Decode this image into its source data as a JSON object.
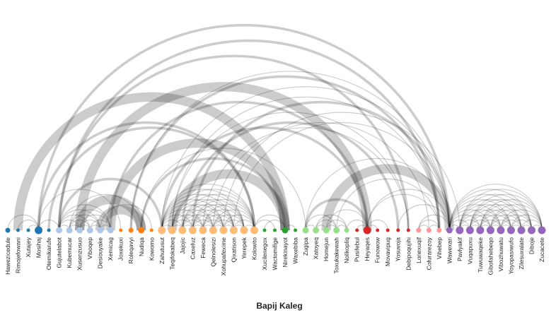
{
  "title": "Bapij Kaleg",
  "chart_data": {
    "type": "arc",
    "nodes": [
      {
        "name": "Hawezicedule",
        "group": 0
      },
      {
        "name": "Rimojefowani",
        "group": 0
      },
      {
        "name": "Xutajey",
        "group": 0
      },
      {
        "name": "Mosihaj",
        "group": 0
      },
      {
        "name": "Otemikarufe",
        "group": 0
      },
      {
        "name": "Gujutelabot",
        "group": 1
      },
      {
        "name": "Kubemucar",
        "group": 1
      },
      {
        "name": "Xusenzusuo",
        "group": 1
      },
      {
        "name": "Viboqep",
        "group": 1
      },
      {
        "name": "Desiouyake",
        "group": 1
      },
      {
        "name": "Xemicag",
        "group": 1
      },
      {
        "name": "Joxekuxi",
        "group": 2
      },
      {
        "name": "Roleqavyi",
        "group": 2
      },
      {
        "name": "Nudiqa",
        "group": 2
      },
      {
        "name": "Kowomo",
        "group": 2
      },
      {
        "name": "Zahutusut",
        "group": 3
      },
      {
        "name": "Teqifokabeq",
        "group": 3
      },
      {
        "name": "Jajojic",
        "group": 3
      },
      {
        "name": "Caxefuz",
        "group": 3
      },
      {
        "name": "Feweca",
        "group": 3
      },
      {
        "name": "Qelnolesizi",
        "group": 3
      },
      {
        "name": "Xohupafexime",
        "group": 3
      },
      {
        "name": "Qixatison",
        "group": 3
      },
      {
        "name": "Yerepek",
        "group": 3
      },
      {
        "name": "Kolowito",
        "group": 3
      },
      {
        "name": "Xucilenegox",
        "group": 4
      },
      {
        "name": "Wactomifige",
        "group": 4
      },
      {
        "name": "Nirekinayot",
        "group": 4
      },
      {
        "name": "Waxebiba",
        "group": 4
      },
      {
        "name": "Zugipa",
        "group": 5
      },
      {
        "name": "Xatoyeq",
        "group": 5
      },
      {
        "name": "Homejun",
        "group": 5
      },
      {
        "name": "Toxukakewah",
        "group": 5
      },
      {
        "name": "Nolikopliq",
        "group": 5
      },
      {
        "name": "Pusifebul",
        "group": 6
      },
      {
        "name": "Heyaqes",
        "group": 6
      },
      {
        "name": "Funowow",
        "group": 6
      },
      {
        "name": "Movavipug",
        "group": 6
      },
      {
        "name": "Yosuvoja",
        "group": 6
      },
      {
        "name": "Debipoqujihi",
        "group": 6
      },
      {
        "name": "Lonexuqif",
        "group": 7
      },
      {
        "name": "Cofurarezoy",
        "group": 7
      },
      {
        "name": "Vihebep",
        "group": 7
      },
      {
        "name": "Wawexari",
        "group": 8
      },
      {
        "name": "Pavlyakif",
        "group": 8
      },
      {
        "name": "Vuqapuxu",
        "group": 8
      },
      {
        "name": "Tuwuwaqeke",
        "group": 8
      },
      {
        "name": "Gibofahebeqo",
        "group": 8
      },
      {
        "name": "Vibozhuwatu",
        "group": 8
      },
      {
        "name": "Yoyopasiwufo",
        "group": 8
      },
      {
        "name": "Zilesuxalate",
        "group": 8
      },
      {
        "name": "Diboje",
        "group": 8
      },
      {
        "name": "Zucacete",
        "group": 8
      }
    ],
    "node_values": [
      2,
      1,
      1,
      4,
      1,
      3,
      3,
      3,
      3,
      3,
      3,
      1,
      2,
      3,
      1,
      4,
      4,
      4,
      4,
      4,
      4,
      4,
      4,
      4,
      4,
      1,
      1,
      3,
      1,
      3,
      3,
      3,
      3,
      2,
      1,
      4,
      1,
      1,
      1,
      1,
      2,
      2,
      2,
      3,
      4,
      4,
      4,
      4,
      4,
      4,
      4,
      4,
      4
    ],
    "group_colors": [
      "#1f77b4",
      "#aec7e8",
      "#ff7f0e",
      "#ffbb78",
      "#2ca02c",
      "#98df8a",
      "#d62728",
      "#ff9896",
      "#9467bd"
    ],
    "links": [
      {
        "source": 0,
        "target": 3,
        "value": 1
      },
      {
        "source": 1,
        "target": 3,
        "value": 1
      },
      {
        "source": 2,
        "target": 3,
        "value": 1
      },
      {
        "source": 3,
        "target": 5,
        "value": 1
      },
      {
        "source": 3,
        "target": 11,
        "value": 1
      },
      {
        "source": 3,
        "target": 43,
        "value": 2
      },
      {
        "source": 1,
        "target": 27,
        "value": 6
      },
      {
        "source": 3,
        "target": 24,
        "value": 2
      },
      {
        "source": 4,
        "target": 24,
        "value": 2
      },
      {
        "source": 5,
        "target": 6,
        "value": 1
      },
      {
        "source": 5,
        "target": 7,
        "value": 1
      },
      {
        "source": 5,
        "target": 8,
        "value": 1
      },
      {
        "source": 5,
        "target": 9,
        "value": 1
      },
      {
        "source": 5,
        "target": 10,
        "value": 1
      },
      {
        "source": 6,
        "target": 7,
        "value": 1
      },
      {
        "source": 6,
        "target": 8,
        "value": 1
      },
      {
        "source": 6,
        "target": 9,
        "value": 1
      },
      {
        "source": 6,
        "target": 10,
        "value": 1
      },
      {
        "source": 7,
        "target": 8,
        "value": 1
      },
      {
        "source": 7,
        "target": 9,
        "value": 1
      },
      {
        "source": 7,
        "target": 10,
        "value": 1
      },
      {
        "source": 8,
        "target": 9,
        "value": 1
      },
      {
        "source": 8,
        "target": 10,
        "value": 1
      },
      {
        "source": 9,
        "target": 10,
        "value": 1
      },
      {
        "source": 6,
        "target": 13,
        "value": 1
      },
      {
        "source": 7,
        "target": 13,
        "value": 6
      },
      {
        "source": 9,
        "target": 13,
        "value": 6
      },
      {
        "source": 9,
        "target": 14,
        "value": 1
      },
      {
        "source": 5,
        "target": 15,
        "value": 2
      },
      {
        "source": 5,
        "target": 39,
        "value": 2
      },
      {
        "source": 5,
        "target": 42,
        "value": 2
      },
      {
        "source": 7,
        "target": 35,
        "value": 6
      },
      {
        "source": 10,
        "target": 27,
        "value": 6
      },
      {
        "source": 10,
        "target": 35,
        "value": 2
      },
      {
        "source": 12,
        "target": 43,
        "value": 1
      },
      {
        "source": 12,
        "target": 42,
        "value": 2
      },
      {
        "source": 13,
        "target": 27,
        "value": 2
      },
      {
        "source": 13,
        "target": 29,
        "value": 1
      },
      {
        "source": 15,
        "target": 16,
        "value": 1
      },
      {
        "source": 15,
        "target": 17,
        "value": 1
      },
      {
        "source": 15,
        "target": 18,
        "value": 1
      },
      {
        "source": 15,
        "target": 19,
        "value": 1
      },
      {
        "source": 15,
        "target": 20,
        "value": 1
      },
      {
        "source": 15,
        "target": 21,
        "value": 1
      },
      {
        "source": 15,
        "target": 22,
        "value": 1
      },
      {
        "source": 15,
        "target": 23,
        "value": 1
      },
      {
        "source": 15,
        "target": 24,
        "value": 1
      },
      {
        "source": 16,
        "target": 17,
        "value": 1
      },
      {
        "source": 16,
        "target": 18,
        "value": 1
      },
      {
        "source": 16,
        "target": 19,
        "value": 1
      },
      {
        "source": 16,
        "target": 20,
        "value": 1
      },
      {
        "source": 16,
        "target": 21,
        "value": 1
      },
      {
        "source": 16,
        "target": 22,
        "value": 1
      },
      {
        "source": 16,
        "target": 23,
        "value": 1
      },
      {
        "source": 16,
        "target": 24,
        "value": 1
      },
      {
        "source": 17,
        "target": 18,
        "value": 1
      },
      {
        "source": 17,
        "target": 19,
        "value": 1
      },
      {
        "source": 17,
        "target": 20,
        "value": 1
      },
      {
        "source": 17,
        "target": 21,
        "value": 1
      },
      {
        "source": 17,
        "target": 22,
        "value": 1
      },
      {
        "source": 17,
        "target": 23,
        "value": 1
      },
      {
        "source": 17,
        "target": 24,
        "value": 1
      },
      {
        "source": 18,
        "target": 19,
        "value": 1
      },
      {
        "source": 18,
        "target": 20,
        "value": 1
      },
      {
        "source": 18,
        "target": 21,
        "value": 1
      },
      {
        "source": 18,
        "target": 22,
        "value": 1
      },
      {
        "source": 18,
        "target": 23,
        "value": 1
      },
      {
        "source": 18,
        "target": 24,
        "value": 1
      },
      {
        "source": 19,
        "target": 20,
        "value": 1
      },
      {
        "source": 19,
        "target": 21,
        "value": 1
      },
      {
        "source": 19,
        "target": 22,
        "value": 1
      },
      {
        "source": 19,
        "target": 23,
        "value": 1
      },
      {
        "source": 19,
        "target": 24,
        "value": 1
      },
      {
        "source": 20,
        "target": 21,
        "value": 1
      },
      {
        "source": 20,
        "target": 22,
        "value": 1
      },
      {
        "source": 20,
        "target": 23,
        "value": 1
      },
      {
        "source": 20,
        "target": 24,
        "value": 1
      },
      {
        "source": 21,
        "target": 22,
        "value": 1
      },
      {
        "source": 21,
        "target": 23,
        "value": 1
      },
      {
        "source": 21,
        "target": 24,
        "value": 1
      },
      {
        "source": 22,
        "target": 23,
        "value": 1
      },
      {
        "source": 22,
        "target": 24,
        "value": 1
      },
      {
        "source": 23,
        "target": 24,
        "value": 1
      },
      {
        "source": 15,
        "target": 43,
        "value": 1
      },
      {
        "source": 15,
        "target": 35,
        "value": 2
      },
      {
        "source": 16,
        "target": 27,
        "value": 6
      },
      {
        "source": 16,
        "target": 42,
        "value": 1
      },
      {
        "source": 16,
        "target": 39,
        "value": 1
      },
      {
        "source": 17,
        "target": 38,
        "value": 2
      },
      {
        "source": 18,
        "target": 43,
        "value": 2
      },
      {
        "source": 19,
        "target": 39,
        "value": 1
      },
      {
        "source": 20,
        "target": 41,
        "value": 1
      },
      {
        "source": 21,
        "target": 44,
        "value": 1
      },
      {
        "source": 22,
        "target": 43,
        "value": 1
      },
      {
        "source": 24,
        "target": 26,
        "value": 1
      },
      {
        "source": 24,
        "target": 27,
        "value": 1
      },
      {
        "source": 25,
        "target": 27,
        "value": 1
      },
      {
        "source": 27,
        "target": 28,
        "value": 1
      },
      {
        "source": 29,
        "target": 30,
        "value": 1
      },
      {
        "source": 29,
        "target": 35,
        "value": 2
      },
      {
        "source": 29,
        "target": 32,
        "value": 1
      },
      {
        "source": 29,
        "target": 43,
        "value": 1
      },
      {
        "source": 30,
        "target": 31,
        "value": 1
      },
      {
        "source": 30,
        "target": 32,
        "value": 1
      },
      {
        "source": 30,
        "target": 33,
        "value": 1
      },
      {
        "source": 31,
        "target": 32,
        "value": 1
      },
      {
        "source": 31,
        "target": 33,
        "value": 1
      },
      {
        "source": 31,
        "target": 35,
        "value": 1
      },
      {
        "source": 31,
        "target": 43,
        "value": 6
      },
      {
        "source": 32,
        "target": 33,
        "value": 1
      },
      {
        "source": 32,
        "target": 42,
        "value": 1
      },
      {
        "source": 33,
        "target": 35,
        "value": 1
      },
      {
        "source": 34,
        "target": 35,
        "value": 1
      },
      {
        "source": 35,
        "target": 36,
        "value": 1
      },
      {
        "source": 35,
        "target": 37,
        "value": 1
      },
      {
        "source": 35,
        "target": 42,
        "value": 1
      },
      {
        "source": 35,
        "target": 43,
        "value": 1
      },
      {
        "source": 38,
        "target": 43,
        "value": 1
      },
      {
        "source": 40,
        "target": 41,
        "value": 1
      },
      {
        "source": 40,
        "target": 42,
        "value": 1
      },
      {
        "source": 41,
        "target": 42,
        "value": 1
      },
      {
        "source": 40,
        "target": 43,
        "value": 1
      },
      {
        "source": 43,
        "target": 44,
        "value": 1
      },
      {
        "source": 43,
        "target": 45,
        "value": 1
      },
      {
        "source": 43,
        "target": 46,
        "value": 1
      },
      {
        "source": 43,
        "target": 47,
        "value": 1
      },
      {
        "source": 43,
        "target": 48,
        "value": 1
      },
      {
        "source": 43,
        "target": 49,
        "value": 1
      },
      {
        "source": 43,
        "target": 50,
        "value": 1
      },
      {
        "source": 43,
        "target": 51,
        "value": 1
      },
      {
        "source": 43,
        "target": 52,
        "value": 1
      },
      {
        "source": 44,
        "target": 45,
        "value": 1
      },
      {
        "source": 44,
        "target": 46,
        "value": 1
      },
      {
        "source": 44,
        "target": 47,
        "value": 1
      },
      {
        "source": 44,
        "target": 48,
        "value": 1
      },
      {
        "source": 44,
        "target": 49,
        "value": 1
      },
      {
        "source": 44,
        "target": 50,
        "value": 1
      },
      {
        "source": 44,
        "target": 51,
        "value": 1
      },
      {
        "source": 44,
        "target": 52,
        "value": 1
      },
      {
        "source": 45,
        "target": 46,
        "value": 1
      },
      {
        "source": 45,
        "target": 47,
        "value": 1
      },
      {
        "source": 45,
        "target": 48,
        "value": 1
      },
      {
        "source": 45,
        "target": 49,
        "value": 1
      },
      {
        "source": 45,
        "target": 50,
        "value": 1
      },
      {
        "source": 45,
        "target": 51,
        "value": 1
      },
      {
        "source": 45,
        "target": 52,
        "value": 1
      },
      {
        "source": 46,
        "target": 47,
        "value": 1
      },
      {
        "source": 46,
        "target": 48,
        "value": 1
      },
      {
        "source": 46,
        "target": 49,
        "value": 1
      },
      {
        "source": 46,
        "target": 50,
        "value": 1
      },
      {
        "source": 46,
        "target": 51,
        "value": 1
      },
      {
        "source": 46,
        "target": 52,
        "value": 1
      },
      {
        "source": 47,
        "target": 48,
        "value": 1
      },
      {
        "source": 47,
        "target": 49,
        "value": 1
      },
      {
        "source": 47,
        "target": 50,
        "value": 1
      },
      {
        "source": 47,
        "target": 51,
        "value": 1
      },
      {
        "source": 47,
        "target": 52,
        "value": 1
      },
      {
        "source": 48,
        "target": 49,
        "value": 1
      },
      {
        "source": 48,
        "target": 50,
        "value": 1
      },
      {
        "source": 48,
        "target": 51,
        "value": 1
      },
      {
        "source": 48,
        "target": 52,
        "value": 1
      },
      {
        "source": 49,
        "target": 50,
        "value": 1
      },
      {
        "source": 49,
        "target": 51,
        "value": 1
      },
      {
        "source": 49,
        "target": 52,
        "value": 1
      },
      {
        "source": 50,
        "target": 51,
        "value": 1
      },
      {
        "source": 50,
        "target": 52,
        "value": 1
      },
      {
        "source": 51,
        "target": 52,
        "value": 1
      }
    ]
  }
}
